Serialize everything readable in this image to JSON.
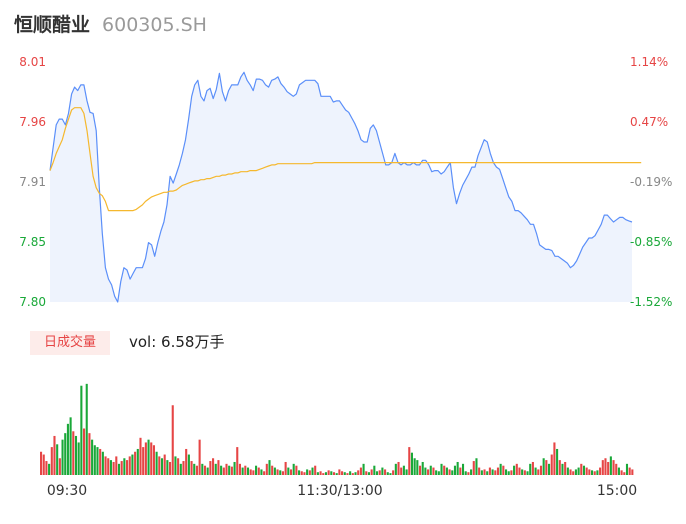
{
  "header": {
    "name": "恒顺醋业",
    "code": "600305.SH"
  },
  "volume_label": {
    "badge": "日成交量",
    "prefix": "vol: ",
    "value": "6.58万手"
  },
  "colors": {
    "price_line": "#5b8ff9",
    "price_fill": "#eef3fd",
    "avg_line": "#f5b82e",
    "up": "#e64545",
    "down": "#1aa839",
    "neutral": "#888888"
  },
  "chart_data": [
    {
      "type": "line",
      "title": "",
      "ylim": [
        7.8,
        8.01
      ],
      "y_ticks_left": [
        "8.01",
        "7.96",
        "7.91",
        "7.85",
        "7.80"
      ],
      "y_ticks_right": [
        "1.14%",
        "0.47%",
        "-0.19%",
        "-0.85%",
        "-1.52%"
      ],
      "x_ticks": [
        "09:30",
        "11:30/13:00",
        "15:00"
      ],
      "grid": false,
      "series": [
        {
          "key": "price",
          "values": [
            7.915,
            7.935,
            7.955,
            7.96,
            7.96,
            7.955,
            7.965,
            7.982,
            7.988,
            7.985,
            7.99,
            7.99,
            7.976,
            7.966,
            7.965,
            7.95,
            7.9,
            7.86,
            7.83,
            7.82,
            7.815,
            7.805,
            7.8,
            7.818,
            7.83,
            7.828,
            7.82,
            7.825,
            7.83,
            7.83,
            7.83,
            7.838,
            7.852,
            7.85,
            7.84,
            7.852,
            7.862,
            7.87,
            7.885,
            7.91,
            7.904,
            7.912,
            7.92,
            7.93,
            7.942,
            7.96,
            7.98,
            7.99,
            7.994,
            7.98,
            7.976,
            7.985,
            7.987,
            7.978,
            7.986,
            8.0,
            7.984,
            7.976,
            7.985,
            7.99,
            7.99,
            7.99,
            7.997,
            8.001,
            7.994,
            7.99,
            7.985,
            7.995,
            7.995,
            7.994,
            7.99,
            7.988,
            7.994,
            7.995,
            7.997,
            7.991,
            7.988,
            7.984,
            7.982,
            7.98,
            7.982,
            7.99,
            7.992,
            7.994,
            7.994,
            7.994,
            7.994,
            7.991,
            7.98,
            7.98,
            7.98,
            7.98,
            7.975,
            7.976,
            7.976,
            7.972,
            7.968,
            7.966,
            7.961,
            7.956,
            7.95,
            7.942,
            7.94,
            7.94,
            7.952,
            7.955,
            7.95,
            7.94,
            7.93,
            7.92,
            7.92,
            7.922,
            7.93,
            7.922,
            7.92,
            7.922,
            7.92,
            7.92,
            7.922,
            7.92,
            7.92,
            7.924,
            7.924,
            7.92,
            7.914,
            7.915,
            7.915,
            7.912,
            7.914,
            7.918,
            7.922,
            7.9,
            7.886,
            7.895,
            7.902,
            7.907,
            7.912,
            7.918,
            7.918,
            7.928,
            7.935,
            7.942,
            7.94,
            7.93,
            7.922,
            7.918,
            7.916,
            7.908,
            7.9,
            7.892,
            7.888,
            7.88,
            7.88,
            7.878,
            7.875,
            7.872,
            7.868,
            7.868,
            7.86,
            7.85,
            7.848,
            7.846,
            7.846,
            7.845,
            7.84,
            7.84,
            7.838,
            7.836,
            7.834,
            7.83,
            7.832,
            7.836,
            7.842,
            7.848,
            7.852,
            7.856,
            7.856,
            7.858,
            7.863,
            7.868,
            7.876,
            7.876,
            7.873,
            7.87,
            7.872,
            7.874,
            7.874,
            7.872,
            7.871,
            7.87
          ],
          "color_key": "price_line"
        },
        {
          "key": "average",
          "values": [
            7.915,
            7.922,
            7.93,
            7.936,
            7.942,
            7.952,
            7.96,
            7.968,
            7.97,
            7.97,
            7.97,
            7.965,
            7.95,
            7.93,
            7.91,
            7.9,
            7.895,
            7.893,
            7.888,
            7.88,
            7.88,
            7.88,
            7.88,
            7.88,
            7.88,
            7.88,
            7.88,
            7.88,
            7.881,
            7.883,
            7.885,
            7.888,
            7.89,
            7.892,
            7.893,
            7.894,
            7.895,
            7.896,
            7.896,
            7.897,
            7.897,
            7.898,
            7.9,
            7.902,
            7.903,
            7.904,
            7.905,
            7.906,
            7.906,
            7.907,
            7.907,
            7.908,
            7.908,
            7.909,
            7.91,
            7.91,
            7.911,
            7.911,
            7.912,
            7.912,
            7.913,
            7.913,
            7.914,
            7.914,
            7.914,
            7.915,
            7.915,
            7.915,
            7.916,
            7.917,
            7.918,
            7.919,
            7.92,
            7.92,
            7.921,
            7.921,
            7.921,
            7.921,
            7.921,
            7.921,
            7.921,
            7.921,
            7.921,
            7.921,
            7.921,
            7.921,
            7.922,
            7.922,
            7.922,
            7.922,
            7.922,
            7.922,
            7.922,
            7.922,
            7.922,
            7.922,
            7.922,
            7.922,
            7.922,
            7.922,
            7.922,
            7.922,
            7.922,
            7.922,
            7.922,
            7.922,
            7.922,
            7.922,
            7.922,
            7.922,
            7.922,
            7.922,
            7.922,
            7.922,
            7.922,
            7.922,
            7.922,
            7.922,
            7.922,
            7.922,
            7.922,
            7.922,
            7.922,
            7.922,
            7.922,
            7.922,
            7.922,
            7.922,
            7.922,
            7.922,
            7.922,
            7.922,
            7.922,
            7.922,
            7.922,
            7.922,
            7.922,
            7.922,
            7.922,
            7.922,
            7.922,
            7.922,
            7.922,
            7.922,
            7.922,
            7.922,
            7.922,
            7.922,
            7.922,
            7.922,
            7.922,
            7.922,
            7.922,
            7.922,
            7.922,
            7.922,
            7.922,
            7.922,
            7.922,
            7.922,
            7.922,
            7.922,
            7.922,
            7.922,
            7.922,
            7.922,
            7.922,
            7.922,
            7.922,
            7.922,
            7.922,
            7.922,
            7.922,
            7.922,
            7.922,
            7.922,
            7.922,
            7.922,
            7.922,
            7.922,
            7.922,
            7.922,
            7.922,
            7.922,
            7.922,
            7.922,
            7.922,
            7.922,
            7.922,
            7.922,
            7.922,
            7.922,
            7.922
          ],
          "color_key": "avg_line"
        }
      ]
    },
    {
      "type": "bar",
      "title": "",
      "ylim": [
        0,
        100
      ],
      "values": [
        25,
        22,
        15,
        12,
        30,
        42,
        33,
        18,
        38,
        45,
        55,
        62,
        47,
        42,
        35,
        96,
        50,
        98,
        45,
        38,
        32,
        30,
        28,
        25,
        20,
        18,
        16,
        14,
        20,
        12,
        15,
        18,
        16,
        20,
        22,
        25,
        28,
        40,
        30,
        35,
        38,
        35,
        32,
        25,
        20,
        18,
        22,
        16,
        14,
        75,
        20,
        18,
        12,
        15,
        28,
        22,
        15,
        12,
        10,
        38,
        12,
        10,
        8,
        15,
        18,
        12,
        16,
        10,
        8,
        12,
        10,
        9,
        14,
        30,
        12,
        8,
        10,
        8,
        6,
        5,
        10,
        8,
        6,
        4,
        12,
        16,
        10,
        8,
        6,
        5,
        4,
        14,
        8,
        6,
        12,
        10,
        5,
        4,
        3,
        6,
        5,
        8,
        10,
        3,
        4,
        2,
        3,
        5,
        4,
        3,
        2,
        6,
        4,
        3,
        2,
        4,
        2,
        3,
        5,
        8,
        12,
        4,
        3,
        6,
        10,
        4,
        5,
        8,
        6,
        3,
        2,
        5,
        12,
        14,
        8,
        10,
        6,
        30,
        24,
        18,
        16,
        10,
        14,
        8,
        6,
        10,
        8,
        5,
        4,
        12,
        10,
        8,
        6,
        5,
        10,
        14,
        8,
        12,
        4,
        3,
        6,
        15,
        18,
        8,
        5,
        6,
        4,
        8,
        6,
        5,
        8,
        12,
        10,
        6,
        4,
        5,
        10,
        12,
        8,
        6,
        5,
        4,
        12,
        14,
        8,
        6,
        10,
        18,
        16,
        12,
        22,
        35,
        28,
        16,
        12,
        14,
        8,
        6,
        4,
        6,
        8,
        12,
        10,
        8,
        6,
        5,
        4,
        5,
        8,
        16,
        18,
        14,
        20,
        16,
        12,
        8,
        5,
        3,
        12,
        8,
        6
      ],
      "directions": [
        1,
        1,
        1,
        -1,
        1,
        1,
        -1,
        1,
        -1,
        -1,
        -1,
        -1,
        1,
        -1,
        -1,
        -1,
        1,
        -1,
        1,
        -1,
        -1,
        -1,
        1,
        -1,
        1,
        1,
        -1,
        1,
        1,
        -1,
        1,
        -1,
        1,
        1,
        -1,
        1,
        -1,
        1,
        1,
        1,
        -1,
        1,
        1,
        -1,
        1,
        -1,
        1,
        -1,
        1,
        1,
        -1,
        1,
        -1,
        1,
        1,
        -1,
        1,
        -1,
        1,
        1,
        -1,
        1,
        -1,
        1,
        1,
        -1,
        1,
        -1,
        1,
        1,
        -1,
        1,
        -1,
        1,
        1,
        -1,
        1,
        -1,
        1,
        1,
        -1,
        1,
        -1,
        1,
        1,
        -1,
        1,
        -1,
        1,
        -1,
        1,
        1,
        -1,
        1,
        -1,
        1,
        -1,
        1,
        1,
        -1,
        1,
        -1,
        1,
        -1,
        1,
        1,
        -1,
        1,
        -1,
        1,
        -1,
        1,
        1,
        -1,
        1,
        -1,
        1,
        -1,
        1,
        1,
        -1,
        1,
        -1,
        1,
        -1,
        -1,
        1,
        -1,
        1,
        -1,
        -1,
        1,
        -1,
        1,
        1,
        -1,
        -1,
        1,
        -1,
        -1,
        -1,
        1,
        -1,
        -1,
        1,
        -1,
        1,
        -1,
        -1,
        -1,
        1,
        -1,
        1,
        -1,
        -1,
        -1,
        1,
        -1,
        -1,
        1,
        -1,
        1,
        -1,
        1,
        -1,
        1,
        -1,
        1,
        -1,
        1,
        1,
        -1,
        1,
        -1,
        -1,
        1,
        -1,
        1,
        1,
        -1,
        1,
        -1,
        -1,
        1,
        -1,
        1,
        1,
        -1,
        1,
        -1,
        1,
        1,
        -1,
        1,
        -1,
        1,
        -1,
        1,
        1,
        -1,
        -1,
        1,
        -1,
        1,
        1,
        -1,
        1,
        -1,
        1,
        1,
        1,
        1,
        -1,
        1,
        1,
        -1,
        1,
        1,
        -1,
        1,
        1,
        1,
        1,
        0
      ]
    }
  ]
}
